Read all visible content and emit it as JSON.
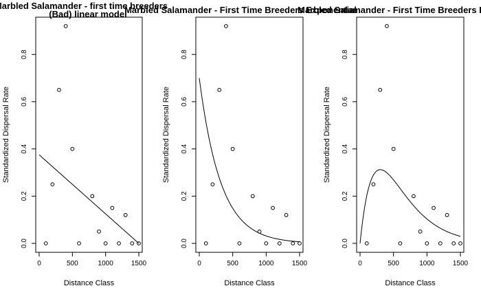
{
  "chart_data": [
    {
      "type": "scatter",
      "title": "Marbled Salamander - first time breeders",
      "title_line2": "(Bad) linear model",
      "xlabel": "Distance Class",
      "ylabel": "Standardized Dispersal Rate",
      "xlim": [
        0,
        1500
      ],
      "ylim": [
        0,
        0.92
      ],
      "xticks": [
        "0",
        "500",
        "1000",
        "1500"
      ],
      "yticks": [
        "0.0",
        "0.2",
        "0.4",
        "0.6",
        "0.8"
      ],
      "grid": false,
      "points": {
        "x": [
          100,
          200,
          300,
          400,
          500,
          600,
          800,
          900,
          1000,
          1100,
          1200,
          1300,
          1400,
          1500
        ],
        "y": [
          0.0,
          0.25,
          0.65,
          0.92,
          0.4,
          0.0,
          0.2,
          0.05,
          0.0,
          0.15,
          0.0,
          0.12,
          0.0,
          0.0
        ]
      },
      "fit": {
        "model": "linear",
        "intercept": 0.375,
        "slope": -0.00025
      }
    },
    {
      "type": "scatter",
      "title": "Marbled Salamander - First Time Breeders Exponential",
      "xlabel": "Distance Class",
      "ylabel": "Standardized Dispersal Rate",
      "xlim": [
        0,
        1500
      ],
      "ylim": [
        0,
        0.92
      ],
      "xticks": [
        "0",
        "500",
        "1000",
        "1500"
      ],
      "yticks": [
        "0.0",
        "0.2",
        "0.4",
        "0.6",
        "0.8"
      ],
      "grid": false,
      "points": {
        "x": [
          100,
          200,
          300,
          400,
          500,
          600,
          800,
          900,
          1000,
          1100,
          1200,
          1300,
          1400,
          1500
        ],
        "y": [
          0.0,
          0.25,
          0.65,
          0.92,
          0.4,
          0.0,
          0.2,
          0.05,
          0.0,
          0.15,
          0.0,
          0.12,
          0.0,
          0.0
        ]
      },
      "fit": {
        "model": "exponential",
        "a": 0.7,
        "b": 0.0031
      }
    },
    {
      "type": "scatter",
      "title": "Marbled Salamander - First Time Breeders Ricker",
      "xlabel": "Distance Class",
      "ylabel": "Standardized Dispersal Rate",
      "xlim": [
        0,
        1500
      ],
      "ylim": [
        0,
        0.92
      ],
      "xticks": [
        "0",
        "500",
        "1000",
        "1500"
      ],
      "yticks": [
        "0.0",
        "0.2",
        "0.4",
        "0.6",
        "0.8"
      ],
      "grid": false,
      "points": {
        "x": [
          100,
          200,
          300,
          400,
          500,
          600,
          800,
          900,
          1000,
          1100,
          1200,
          1300,
          1400,
          1500
        ],
        "y": [
          0.0,
          0.25,
          0.65,
          0.92,
          0.4,
          0.0,
          0.2,
          0.05,
          0.0,
          0.15,
          0.0,
          0.12,
          0.0,
          0.0
        ]
      },
      "fit": {
        "model": "ricker",
        "a": 0.0028,
        "b": 0.0033
      }
    }
  ]
}
